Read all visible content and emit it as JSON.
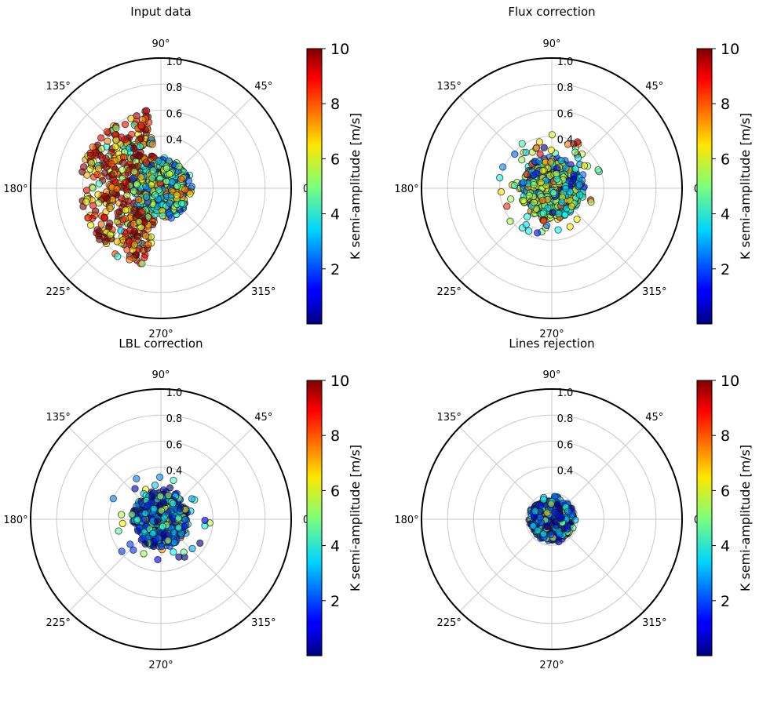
{
  "figure": {
    "colorbar_label": "K semi-amplitude [m/s]",
    "colorbar_ticks": [
      "2",
      "4",
      "6",
      "8",
      "10"
    ],
    "colorbar_min": 0,
    "colorbar_max": 10,
    "angle_labels": [
      "0",
      "45°",
      "90°",
      "135°",
      "180°",
      "225°",
      "270°",
      "315°"
    ],
    "radial_labels": [
      "0.4",
      "0.6",
      "0.8",
      "1.0"
    ]
  },
  "chart_data": [
    {
      "type": "scatter",
      "title": "Input data",
      "projection": "polar",
      "rlim": [
        0,
        1.0
      ],
      "radial_ticks": [
        0.2,
        0.4,
        0.6,
        0.8,
        1.0
      ],
      "angular_ticks_deg": [
        0,
        45,
        90,
        135,
        180,
        225,
        270,
        315
      ],
      "color_variable": "K semi-amplitude [m/s]",
      "clim": [
        0,
        10
      ],
      "distribution": {
        "n_points": 900,
        "core_radius": 0.22,
        "halo_radius": 0.62,
        "halo_fraction": 0.45,
        "halo_angles_deg": [
          100,
          260
        ],
        "mean_K_core": 4.5,
        "mean_K_halo": 8.5
      }
    },
    {
      "type": "scatter",
      "title": "Flux correction",
      "projection": "polar",
      "rlim": [
        0,
        1.0
      ],
      "radial_ticks": [
        0.2,
        0.4,
        0.6,
        0.8,
        1.0
      ],
      "angular_ticks_deg": [
        0,
        45,
        90,
        135,
        180,
        225,
        270,
        315
      ],
      "color_variable": "K semi-amplitude [m/s]",
      "clim": [
        0,
        10
      ],
      "distribution": {
        "n_points": 750,
        "core_radius": 0.22,
        "halo_radius": 0.42,
        "halo_fraction": 0.08,
        "halo_angles_deg": [
          0,
          360
        ],
        "mean_K_core": 4.5,
        "mean_K_halo": 5.5
      }
    },
    {
      "type": "scatter",
      "title": "LBL correction",
      "projection": "polar",
      "rlim": [
        0,
        1.0
      ],
      "radial_ticks": [
        0.2,
        0.4,
        0.6,
        0.8,
        1.0
      ],
      "angular_ticks_deg": [
        0,
        45,
        90,
        135,
        180,
        225,
        270,
        315
      ],
      "color_variable": "K semi-amplitude [m/s]",
      "clim": [
        0,
        10
      ],
      "distribution": {
        "n_points": 650,
        "core_radius": 0.2,
        "halo_radius": 0.4,
        "halo_fraction": 0.05,
        "halo_angles_deg": [
          0,
          360
        ],
        "mean_K_core": 2.6,
        "mean_K_halo": 3.5
      }
    },
    {
      "type": "scatter",
      "title": "Lines rejection",
      "projection": "polar",
      "rlim": [
        0,
        1.0
      ],
      "radial_ticks": [
        0.2,
        0.4,
        0.6,
        0.8,
        1.0
      ],
      "angular_ticks_deg": [
        0,
        45,
        90,
        135,
        180,
        225,
        270,
        315
      ],
      "color_variable": "K semi-amplitude [m/s]",
      "clim": [
        0,
        10
      ],
      "distribution": {
        "n_points": 600,
        "core_radius": 0.16,
        "halo_radius": 0.2,
        "halo_fraction": 0.0,
        "halo_angles_deg": [
          0,
          360
        ],
        "mean_K_core": 2.2,
        "mean_K_halo": 2.2
      }
    }
  ]
}
